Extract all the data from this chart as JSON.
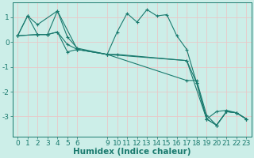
{
  "xlabel": "Humidex (Indice chaleur)",
  "background_color": "#cceee8",
  "grid_color": "#e8c8c8",
  "line_color": "#1a7a6e",
  "xlim": [
    -0.5,
    23.5
  ],
  "ylim": [
    -3.8,
    1.6
  ],
  "lines": [
    {
      "x": [
        0,
        1,
        2,
        4,
        5,
        6,
        9,
        10,
        11,
        12,
        13,
        14,
        15,
        16,
        17,
        18,
        19,
        20,
        21,
        22,
        23
      ],
      "y": [
        0.25,
        1.05,
        0.7,
        1.25,
        0.2,
        -0.25,
        -0.5,
        0.4,
        1.15,
        0.8,
        1.3,
        1.05,
        1.1,
        0.25,
        -0.3,
        -1.65,
        -3.1,
        -2.8,
        -2.75,
        -2.85,
        -3.1
      ]
    },
    {
      "x": [
        0,
        1,
        2,
        3,
        4,
        5,
        6,
        9,
        10,
        17,
        18,
        19,
        20,
        21,
        22,
        23
      ],
      "y": [
        0.25,
        1.05,
        0.3,
        0.3,
        0.4,
        -0.1,
        -0.3,
        -0.5,
        -0.5,
        -0.75,
        -1.65,
        -3.1,
        -3.35,
        -2.8,
        -2.85,
        -3.1
      ]
    },
    {
      "x": [
        0,
        2,
        3,
        4,
        5,
        6,
        9,
        17,
        18,
        19,
        20,
        21,
        22,
        23
      ],
      "y": [
        0.25,
        0.3,
        0.3,
        0.4,
        -0.4,
        -0.3,
        -0.5,
        -1.55,
        -1.55,
        -2.95,
        -3.35,
        -2.8,
        -2.85,
        -3.1
      ]
    },
    {
      "x": [
        0,
        2,
        3,
        4,
        6,
        9,
        17,
        19,
        20,
        21,
        22,
        23
      ],
      "y": [
        0.25,
        0.3,
        0.3,
        1.25,
        -0.3,
        -0.5,
        -0.75,
        -3.1,
        -3.35,
        -2.8,
        -2.85,
        -3.1
      ]
    }
  ],
  "xticks": [
    0,
    1,
    2,
    3,
    4,
    5,
    6,
    9,
    10,
    11,
    12,
    13,
    14,
    15,
    16,
    17,
    18,
    19,
    20,
    21,
    22,
    23
  ],
  "yticks": [
    1,
    0,
    -1,
    -2,
    -3
  ],
  "tick_fontsize": 6.5,
  "xlabel_fontsize": 7.5
}
